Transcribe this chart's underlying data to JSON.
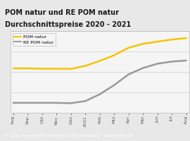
{
  "title_line1": "POM natur und RE POM natur",
  "title_line2": "Durchschnittspreise 2020 - 2021",
  "title_bg": "#f5c400",
  "title_color": "#1a1a1a",
  "chart_bg": "#e8e8e8",
  "plot_bg": "#f5f5f5",
  "footer_text": "© 2021 Kunststoff Information, Bad Homburg - www.kiweb.de",
  "footer_bg": "#7a7a7a",
  "footer_color": "#ffffff",
  "x_labels": [
    "Aug",
    "Sep",
    "Okt",
    "Nov",
    "Dez",
    "2021",
    "Feb",
    "Mrz",
    "Apr",
    "Mai",
    "Jun",
    "Jul",
    "Aug"
  ],
  "pom_natur": [
    1.55,
    1.55,
    1.54,
    1.54,
    1.535,
    1.62,
    1.76,
    1.92,
    2.13,
    2.24,
    2.3,
    2.36,
    2.4
  ],
  "re_pom_natur": [
    0.58,
    0.58,
    0.58,
    0.58,
    0.57,
    0.63,
    0.82,
    1.08,
    1.38,
    1.56,
    1.68,
    1.74,
    1.77
  ],
  "pom_color": "#f5c400",
  "re_pom_color": "#999999",
  "line_width": 1.8,
  "legend_labels": [
    "POM natur",
    "RE POM natur"
  ],
  "grid_color": "#cccccc",
  "border_color": "#bbbbbb",
  "y_min": 0.3,
  "y_max": 2.6
}
